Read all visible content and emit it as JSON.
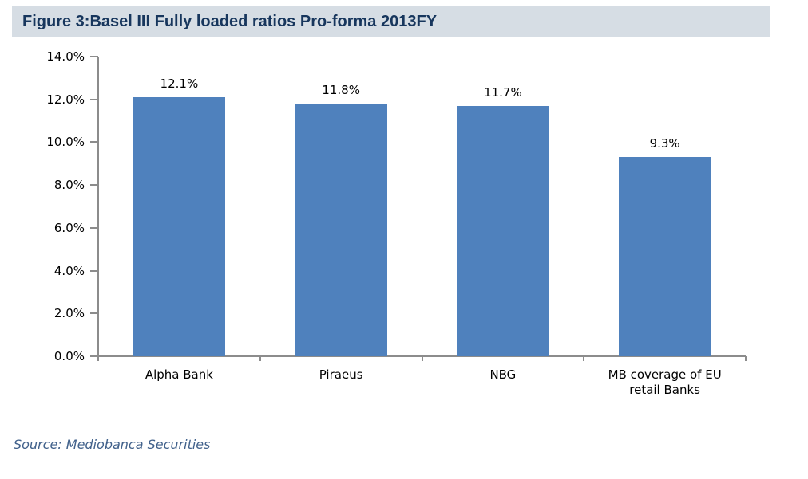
{
  "header": {
    "title": "Figure 3:Basel III Fully loaded ratios Pro-forma 2013FY"
  },
  "chart_data": {
    "type": "bar",
    "title": "Figure 3:Basel III Fully loaded ratios Pro-forma 2013FY",
    "categories": [
      "Alpha Bank",
      "Piraeus",
      "NBG",
      "MB coverage of EU retail Banks"
    ],
    "values": [
      12.1,
      11.8,
      11.7,
      9.3
    ],
    "value_labels": [
      "12.1%",
      "11.8%",
      "11.7%",
      "9.3%"
    ],
    "xlabel": "",
    "ylabel": "",
    "ylim": [
      0,
      14
    ],
    "y_ticks": [
      {
        "value": 0,
        "label": "0.0%"
      },
      {
        "value": 2,
        "label": "2.0%"
      },
      {
        "value": 4,
        "label": "4.0%"
      },
      {
        "value": 6,
        "label": "6.0%"
      },
      {
        "value": 8,
        "label": "8.0%"
      },
      {
        "value": 10,
        "label": "10.0%"
      },
      {
        "value": 12,
        "label": "12.0%"
      },
      {
        "value": 14,
        "label": "14.0%"
      }
    ],
    "grid": "off",
    "legend": "none",
    "bar_color": "#4f81bd"
  },
  "footer": {
    "source": "Source: Mediobanca Securities"
  },
  "colors": {
    "title_band_bg": "#d6dde4",
    "title_text": "#17365d",
    "bar_fill": "#4f81bd",
    "axis_line": "#8c8c8c",
    "label_text": "#000000",
    "source_text": "#41618b"
  }
}
